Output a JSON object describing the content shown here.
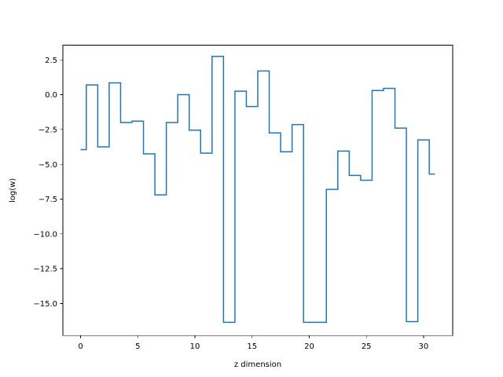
{
  "chart_data": {
    "type": "line",
    "step": "mid",
    "title": "",
    "xlabel": "z dimension",
    "ylabel": "log(w)",
    "xlim": [
      -1.55,
      32.55
    ],
    "ylim": [
      -17.3,
      3.55
    ],
    "xticks": [
      0,
      5,
      10,
      15,
      20,
      25,
      30
    ],
    "xtick_labels": [
      "0",
      "5",
      "10",
      "15",
      "20",
      "25",
      "30"
    ],
    "yticks": [
      2.5,
      0.0,
      -2.5,
      -5.0,
      -7.5,
      -10.0,
      -12.5,
      -15.0
    ],
    "ytick_labels": [
      "2.5",
      "0.0",
      "−2.5",
      "−5.0",
      "−7.5",
      "−10.0",
      "−12.5",
      "−15.0"
    ],
    "grid": false,
    "legend": false,
    "series": [
      {
        "color": "#1f77b4",
        "x": [
          0,
          1,
          2,
          3,
          4,
          5,
          6,
          7,
          8,
          9,
          10,
          11,
          12,
          13,
          14,
          15,
          16,
          17,
          18,
          19,
          20,
          21,
          22,
          23,
          24,
          25,
          26,
          27,
          28,
          29,
          30,
          31
        ],
        "y": [
          -3.95,
          0.7,
          -3.75,
          0.85,
          -2.0,
          -1.9,
          -4.25,
          -7.2,
          -2.0,
          0.0,
          -2.55,
          -4.2,
          2.75,
          -16.35,
          0.25,
          -0.85,
          1.7,
          -2.75,
          -4.1,
          -2.15,
          -16.35,
          -16.35,
          -6.8,
          -4.05,
          -5.8,
          -6.15,
          0.3,
          0.45,
          -2.4,
          -16.3,
          -3.25,
          -5.7
        ]
      }
    ]
  }
}
